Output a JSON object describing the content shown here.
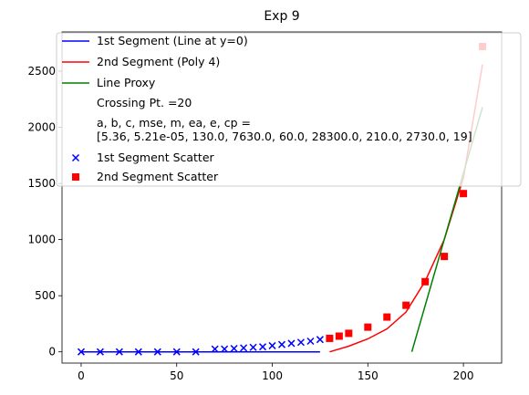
{
  "chart_data": {
    "type": "line",
    "title": "Exp 9",
    "xlabel": "",
    "ylabel": "",
    "xlim": [
      -10,
      220
    ],
    "ylim": [
      -100,
      2850
    ],
    "xticks": [
      0,
      50,
      100,
      150,
      200
    ],
    "yticks": [
      0,
      500,
      1000,
      1500,
      2000,
      2500
    ],
    "grid": false,
    "legend_position": "top-left",
    "legend": [
      {
        "label": "1st Segment (Line at y=0)",
        "kind": "line",
        "color": "#0000ff"
      },
      {
        "label": "2nd Segment (Poly 4)",
        "kind": "line",
        "color": "#ff0000"
      },
      {
        "label": "Line Proxy",
        "kind": "line",
        "color": "#008000"
      },
      {
        "label": "Crossing Pt. =20",
        "kind": "none"
      },
      {
        "label": "a, b, c, mse, m, ea, e, cp =",
        "label2": " [5.36, 5.21e-05, 130.0, 7630.0, 60.0, 28300.0, 210.0, 2730.0, 19]",
        "kind": "none"
      },
      {
        "label": "1st Segment Scatter",
        "kind": "x-marker",
        "color": "#0000ff"
      },
      {
        "label": "2nd Segment Scatter",
        "kind": "square-marker",
        "color": "#ff0000"
      }
    ],
    "series": [
      {
        "name": "1st Segment (Line at y=0)",
        "kind": "line",
        "color": "#0000ff",
        "x": [
          0,
          125
        ],
        "y": [
          0,
          0
        ]
      },
      {
        "name": "2nd Segment (Poly 4)",
        "kind": "line",
        "color": "#ff0000",
        "x": [
          130,
          140,
          150,
          160,
          170,
          180,
          190,
          200,
          210
        ],
        "y": [
          0,
          50,
          115,
          205,
          355,
          630,
          1000,
          1550,
          2560
        ]
      },
      {
        "name": "Line Proxy",
        "kind": "line",
        "color": "#008000",
        "x": [
          173,
          210
        ],
        "y": [
          0,
          2180
        ]
      },
      {
        "name": "1st Segment Scatter",
        "kind": "scatter-x",
        "color": "#0000ff",
        "x": [
          0,
          10,
          20,
          30,
          40,
          50,
          60,
          70,
          75,
          80,
          85,
          90,
          95,
          100,
          105,
          110,
          115,
          120,
          125
        ],
        "y": [
          0,
          0,
          0,
          0,
          0,
          0,
          0,
          25,
          25,
          30,
          35,
          40,
          45,
          55,
          65,
          75,
          85,
          95,
          110
        ]
      },
      {
        "name": "2nd Segment Scatter",
        "kind": "scatter-square",
        "color": "#ff0000",
        "x": [
          130,
          135,
          140,
          150,
          160,
          170,
          180,
          190,
          200,
          210
        ],
        "y": [
          120,
          140,
          165,
          220,
          310,
          415,
          625,
          850,
          1410,
          2720
        ]
      }
    ]
  }
}
